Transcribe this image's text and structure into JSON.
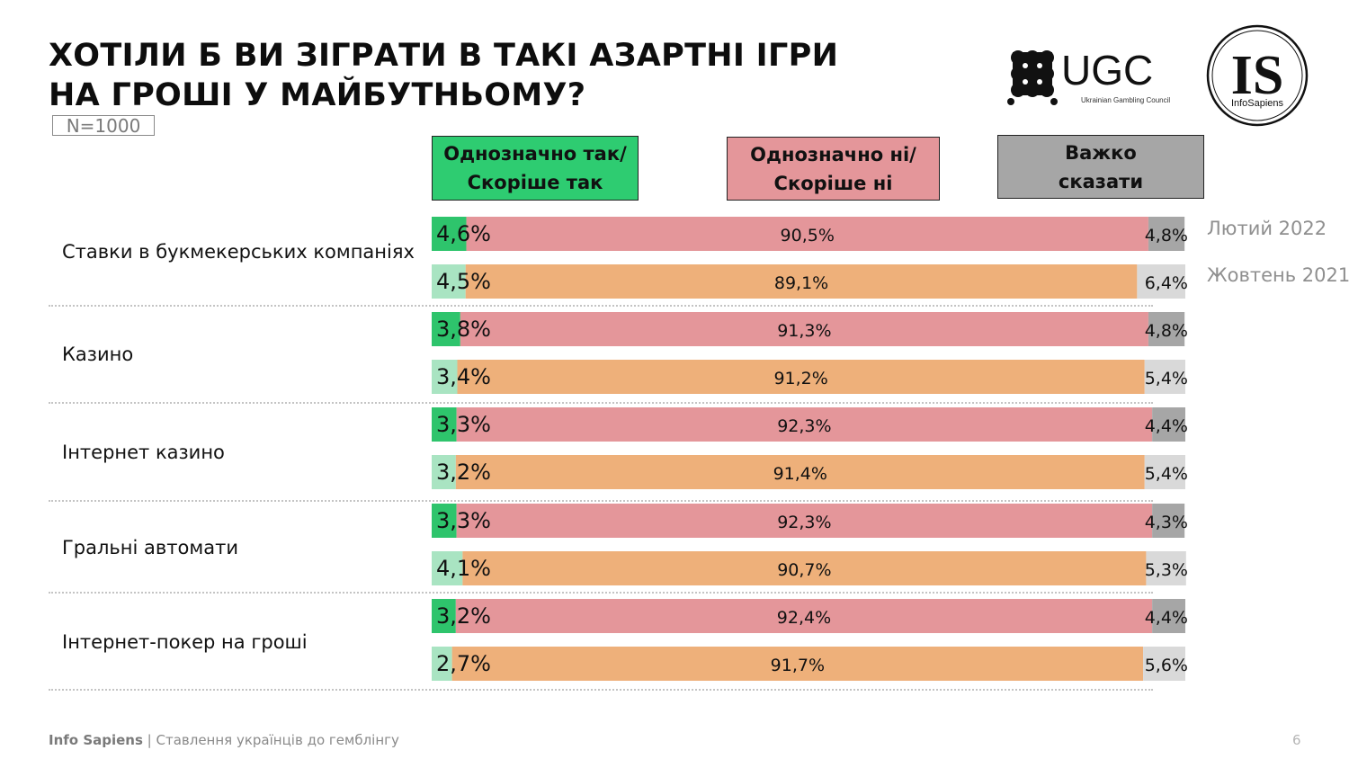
{
  "title": {
    "line1": "ХОТІЛИ Б ВИ ЗІГРАТИ В ТАКІ АЗАРТНІ ІГРИ",
    "line2": "НА ГРОШІ У МАЙБУТНЬОМУ?"
  },
  "sample": "N=1000",
  "logos": {
    "ugc_text": "UGC",
    "ugc_subtitle": "Ukrainian Gambling Council",
    "is_text": "IS",
    "is_subtitle": "InfoSapiens"
  },
  "legend": {
    "yes": {
      "line1": "Однозначно так/",
      "line2": "Скоріше так"
    },
    "no": {
      "line1": "Однозначно ні/",
      "line2": "Скоріше ні"
    },
    "unsure": {
      "line1": "Важко",
      "line2": "сказати"
    }
  },
  "periods": [
    "Лютий 2022",
    "Жовтень 2021"
  ],
  "chart_data": {
    "type": "bar",
    "orientation": "horizontal",
    "stacked": true,
    "categories": [
      "Ставки в букмекерських компаніях",
      "Казино",
      "Інтернет казино",
      "Гральні автомати",
      "Інтернет-покер на гроші"
    ],
    "series_labels": [
      "Однозначно так/ Скоріше так",
      "Однозначно ні/ Скоріше ні",
      "Важко сказати"
    ],
    "rows": [
      {
        "category": "Ставки в букмекерських компаніях",
        "period": "Лютий 2022",
        "values": [
          4.6,
          90.5,
          4.8
        ],
        "labels": [
          "4,6%",
          "90,5%",
          "4,8%"
        ]
      },
      {
        "category": "Ставки в букмекерських компаніях",
        "period": "Жовтень 2021",
        "values": [
          4.5,
          89.1,
          6.4
        ],
        "labels": [
          "4,5%",
          "89,1%",
          "6,4%"
        ]
      },
      {
        "category": "Казино",
        "period": "Лютий 2022",
        "values": [
          3.8,
          91.3,
          4.8
        ],
        "labels": [
          "3,8%",
          "91,3%",
          "4,8%"
        ]
      },
      {
        "category": "Казино",
        "period": "Жовтень 2021",
        "values": [
          3.4,
          91.2,
          5.4
        ],
        "labels": [
          "3,4%",
          "91,2%",
          "5,4%"
        ]
      },
      {
        "category": "Інтернет казино",
        "period": "Лютий 2022",
        "values": [
          3.3,
          92.3,
          4.4
        ],
        "labels": [
          "3,3%",
          "92,3%",
          "4,4%"
        ]
      },
      {
        "category": "Інтернет казино",
        "period": "Жовтень 2021",
        "values": [
          3.2,
          91.4,
          5.4
        ],
        "labels": [
          "3,2%",
          "91,4%",
          "5,4%"
        ]
      },
      {
        "category": "Гральні автомати",
        "period": "Лютий 2022",
        "values": [
          3.3,
          92.3,
          4.3
        ],
        "labels": [
          "3,3%",
          "92,3%",
          "4,3%"
        ]
      },
      {
        "category": "Гральні автомати",
        "period": "Жовтень 2021",
        "values": [
          4.1,
          90.7,
          5.3
        ],
        "labels": [
          "4,1%",
          "90,7%",
          "5,3%"
        ]
      },
      {
        "category": "Інтернет-покер на гроші",
        "period": "Лютий 2022",
        "values": [
          3.2,
          92.4,
          4.4
        ],
        "labels": [
          "3,2%",
          "92,4%",
          "4,4%"
        ]
      },
      {
        "category": "Інтернет-покер на гроші",
        "period": "Жовтень 2021",
        "values": [
          2.7,
          91.7,
          5.6
        ],
        "labels": [
          "2,7%",
          "91,7%",
          "5,6%"
        ]
      }
    ],
    "xlim": [
      0,
      100
    ],
    "colors": {
      "Лютий 2022": [
        "#2ec46c",
        "#e4969a",
        "#a6a6a6"
      ],
      "Жовтень 2021": [
        "#a9e4c2",
        "#eeb07a",
        "#d9d9d9"
      ]
    },
    "legend_colors": {
      "yes": "#2ecc71",
      "no": "#e4969a",
      "unsure": "#a6a6a6"
    }
  },
  "footer": {
    "brand": "Info Sapiens",
    "separator": " | ",
    "text": "Ставлення українців до гемблінгу"
  },
  "page_number": "6"
}
